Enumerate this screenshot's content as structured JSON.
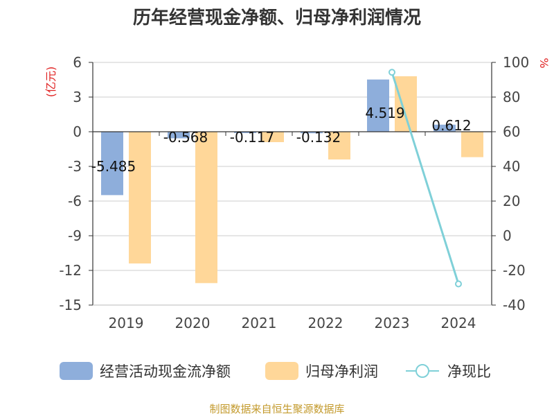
{
  "chart_data": {
    "type": "bar",
    "title": "历年经营现金净额、归母净利润情况",
    "categories": [
      "2019",
      "2020",
      "2021",
      "2022",
      "2023",
      "2024"
    ],
    "ylabel_left": "(亿元)",
    "ylabel_right": "%",
    "ylim_left": [
      -15,
      6
    ],
    "yticks_left": [
      6,
      3,
      0,
      -3,
      -6,
      -9,
      -12,
      -15
    ],
    "ylim_right": [
      -40,
      100
    ],
    "yticks_right": [
      100,
      80,
      60,
      40,
      20,
      0,
      -20,
      -40
    ],
    "series": [
      {
        "name": "经营活动现金流净额",
        "type": "bar",
        "axis": "left",
        "color": "#8eaedb",
        "values": [
          -5.485,
          -0.568,
          -0.117,
          -0.132,
          4.519,
          0.612
        ],
        "labels": [
          "-5.485",
          "-0.568",
          "-0.117",
          "-0.132",
          "4.519",
          "0.612"
        ]
      },
      {
        "name": "归母净利润",
        "type": "bar",
        "axis": "left",
        "color": "#ffd799",
        "values": [
          -11.4,
          -13.1,
          -0.9,
          -2.4,
          4.8,
          -2.2
        ]
      },
      {
        "name": "净现比",
        "type": "line",
        "axis": "right",
        "color": "#7fd0d8",
        "points": [
          {
            "x": "2023",
            "y": 94.3
          },
          {
            "x": "2024",
            "y": -27.8
          }
        ]
      }
    ],
    "legend_position": "bottom",
    "grid": true
  },
  "footer": {
    "source": "制图数据来自恒生聚源数据库"
  }
}
